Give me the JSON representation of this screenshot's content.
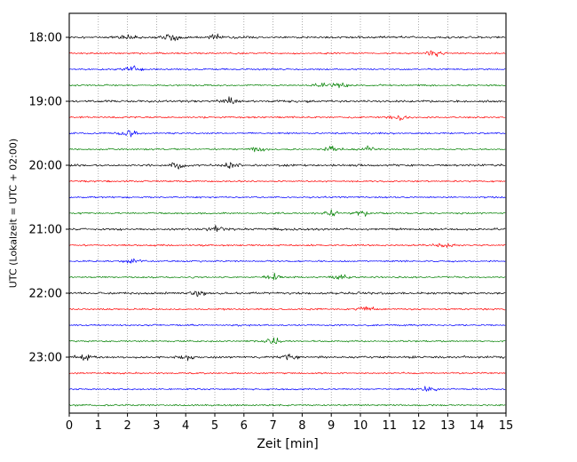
{
  "chart_data": {
    "type": "line",
    "chart_kind": "helicorder-seismogram",
    "title": "",
    "xlabel": "Zeit [min]",
    "ylabel": "UTC (Lokalzeit = UTC + 02:00)",
    "xlim": [
      0,
      15
    ],
    "minutes_per_line": 15,
    "grid": "vertical-dotted",
    "legend": "none",
    "x_tick_labels": [
      "0",
      "1",
      "2",
      "3",
      "4",
      "5",
      "6",
      "7",
      "8",
      "9",
      "10",
      "11",
      "12",
      "13",
      "14",
      "15"
    ],
    "y_tick_labels": [
      "18:00",
      "19:00",
      "20:00",
      "21:00",
      "22:00",
      "23:00"
    ],
    "trace_color_cycle": [
      "#000000",
      "#ff0000",
      "#0000ff",
      "#008000"
    ],
    "traces": [
      {
        "start": "18:00",
        "color": "#000000",
        "bursts": [
          2.0,
          3.5,
          5.0
        ]
      },
      {
        "start": "18:15",
        "color": "#ff0000",
        "bursts": [
          12.6
        ]
      },
      {
        "start": "18:30",
        "color": "#0000ff",
        "bursts": [
          2.2
        ]
      },
      {
        "start": "18:45",
        "color": "#008000",
        "bursts": [
          8.7,
          9.3
        ]
      },
      {
        "start": "19:00",
        "color": "#000000",
        "bursts": [
          5.5
        ]
      },
      {
        "start": "19:15",
        "color": "#ff0000",
        "bursts": [
          11.3
        ]
      },
      {
        "start": "19:30",
        "color": "#0000ff",
        "bursts": [
          2.0
        ]
      },
      {
        "start": "19:45",
        "color": "#008000",
        "bursts": [
          6.5,
          9.0,
          10.2
        ]
      },
      {
        "start": "20:00",
        "color": "#000000",
        "bursts": [
          3.8,
          5.5
        ]
      },
      {
        "start": "20:15",
        "color": "#ff0000",
        "bursts": []
      },
      {
        "start": "20:30",
        "color": "#0000ff",
        "bursts": []
      },
      {
        "start": "20:45",
        "color": "#008000",
        "bursts": [
          9.0,
          10.0
        ]
      },
      {
        "start": "21:00",
        "color": "#000000",
        "bursts": [
          5.0
        ]
      },
      {
        "start": "21:15",
        "color": "#ff0000",
        "bursts": [
          12.8
        ]
      },
      {
        "start": "21:30",
        "color": "#0000ff",
        "bursts": [
          2.2
        ]
      },
      {
        "start": "21:45",
        "color": "#008000",
        "bursts": [
          7.0,
          9.3
        ]
      },
      {
        "start": "22:00",
        "color": "#000000",
        "bursts": [
          4.4
        ]
      },
      {
        "start": "22:15",
        "color": "#ff0000",
        "bursts": [
          10.2
        ]
      },
      {
        "start": "22:30",
        "color": "#0000ff",
        "bursts": []
      },
      {
        "start": "22:45",
        "color": "#008000",
        "bursts": [
          7.0
        ]
      },
      {
        "start": "23:00",
        "color": "#000000",
        "bursts": [
          0.5,
          4.0,
          7.6
        ]
      },
      {
        "start": "23:15",
        "color": "#ff0000",
        "bursts": []
      },
      {
        "start": "23:30",
        "color": "#0000ff",
        "bursts": [
          12.3
        ]
      },
      {
        "start": "23:45",
        "color": "#008000",
        "bursts": []
      }
    ],
    "note": "Continuous seismic background-noise traces; exact waveform sample values are not readable from the image and are rendered as seeded procedural noise with bursts at the approximate minute positions listed."
  }
}
